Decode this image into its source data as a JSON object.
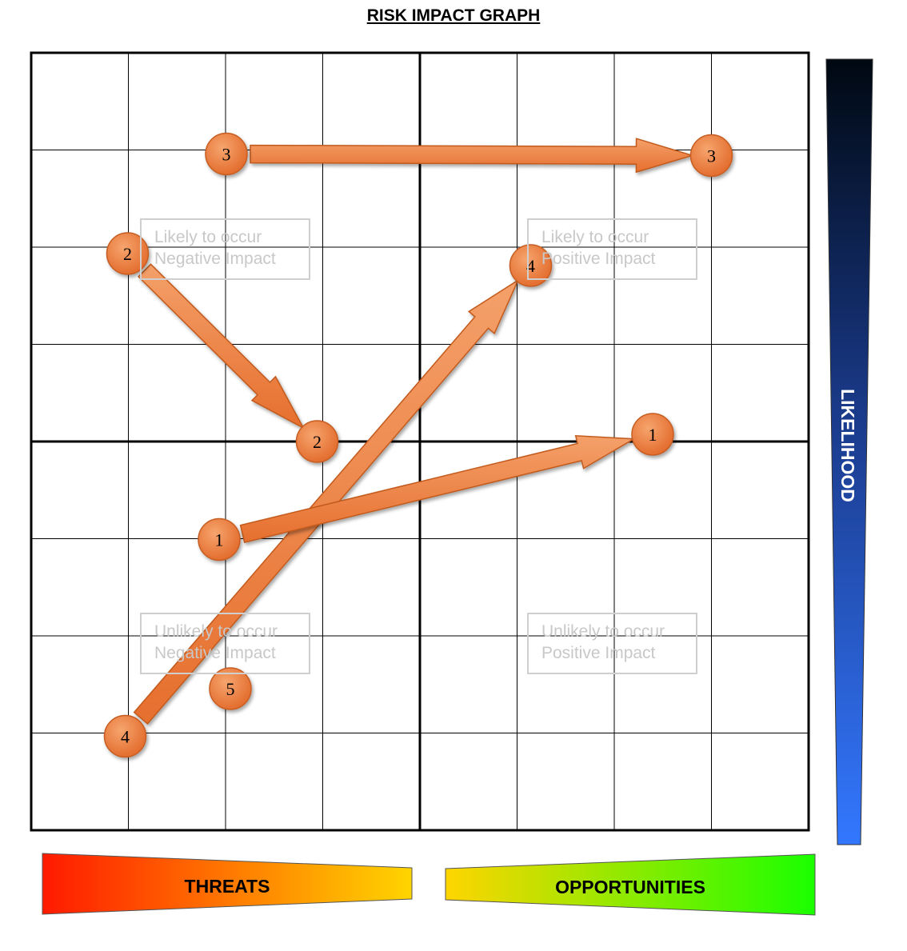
{
  "title": "RISK IMPACT GRAPH",
  "quadrant_labels": {
    "top_left": "Likely to occur\nNegative Impact",
    "top_right": "Likely to occur\nPositive Impact",
    "bottom_left": "Unlikely to occur\nNegative Impact",
    "bottom_right": "Unlikely to occur\nPositive Impact"
  },
  "axes": {
    "horizontal_left": "THREATS",
    "horizontal_right": "OPPORTUNITIES",
    "vertical": "LIKELIHOOD"
  },
  "colors": {
    "marker_fill": "#ee7d3a",
    "arrow_fill": "#ef8040",
    "threat_gradient": [
      "#ff1a00",
      "#ffd500"
    ],
    "opportunity_gradient": [
      "#ffd500",
      "#1aff00"
    ],
    "likelihood_gradient": [
      "#000811",
      "#3377ff"
    ]
  },
  "markers": [
    {
      "label": "3",
      "col": 2,
      "row": 1,
      "dx": 1,
      "dy": 5
    },
    {
      "label": "3",
      "col": 7,
      "row": 1,
      "dx": 0,
      "dy": 7
    },
    {
      "label": "2",
      "col": 1,
      "row": 2,
      "dx": -1,
      "dy": 8
    },
    {
      "label": "4",
      "col": 5,
      "row": 2,
      "dx": 17,
      "dy": 23
    },
    {
      "label": "2",
      "col": 3,
      "row": 4,
      "dx": -7,
      "dy": 0
    },
    {
      "label": "1",
      "col": 6,
      "row": 4,
      "dx": 48,
      "dy": -9
    },
    {
      "label": "1",
      "col": 2,
      "row": 5,
      "dx": -8,
      "dy": 1
    },
    {
      "label": "5",
      "col": 2,
      "row": 6,
      "dx": 6,
      "dy": 66
    },
    {
      "label": "4",
      "col": 1,
      "row": 7,
      "dx": -4,
      "dy": 4
    }
  ],
  "arrows": [
    {
      "from": 0,
      "to": 1
    },
    {
      "from": 2,
      "to": 4
    },
    {
      "from": 8,
      "to": 3
    },
    {
      "from": 6,
      "to": 5
    }
  ]
}
